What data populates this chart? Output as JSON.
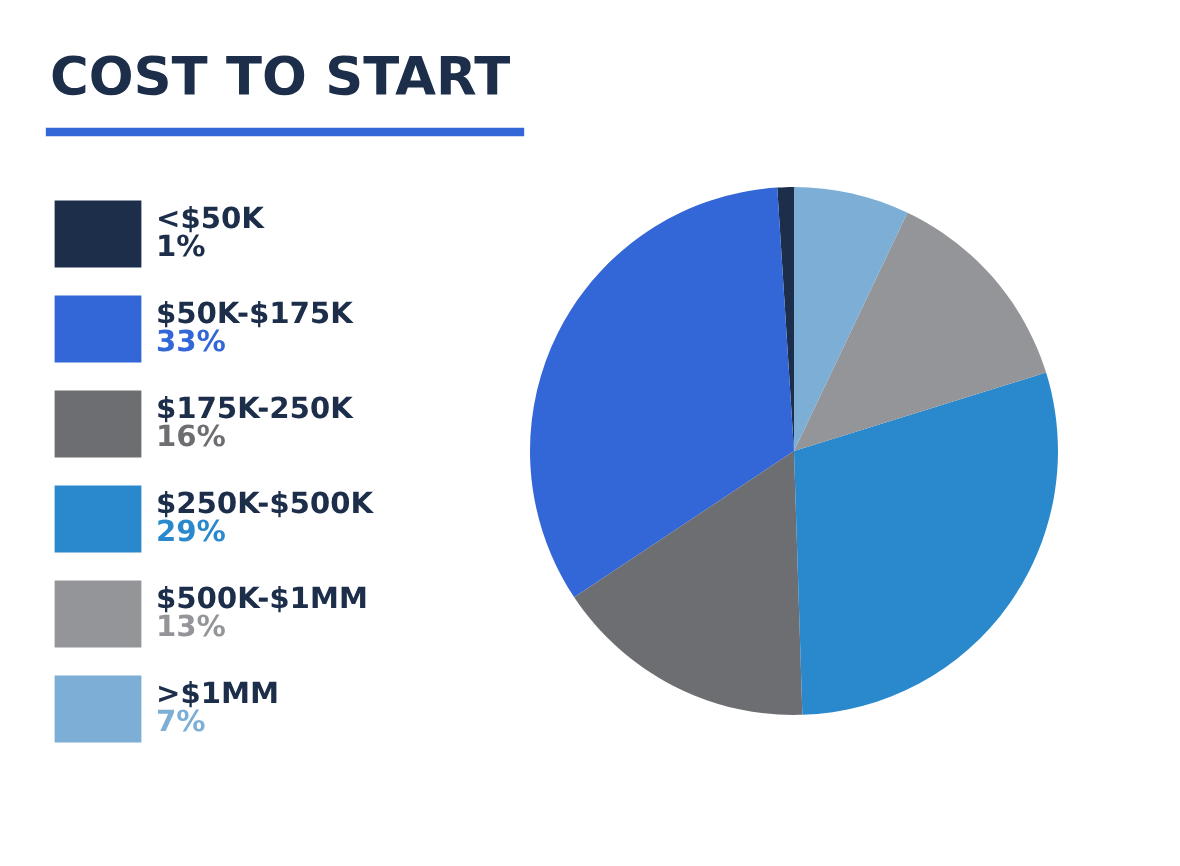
{
  "chart_data": {
    "type": "pie",
    "title": "COST TO START",
    "categories": [
      "<$50K",
      "$50K-$175K",
      "$175K-250K",
      "$250K-$500K",
      "$500K-$1MM",
      ">$1MM"
    ],
    "values": [
      1,
      33,
      16,
      29,
      13,
      7
    ],
    "value_labels": [
      "1%",
      "33%",
      "16%",
      "29%",
      "13%",
      "7%"
    ],
    "colors": [
      "#1c2e4a",
      "#3366d6",
      "#6d6e72",
      "#2a88cc",
      "#949598",
      "#7daed6"
    ],
    "legend": "left"
  }
}
